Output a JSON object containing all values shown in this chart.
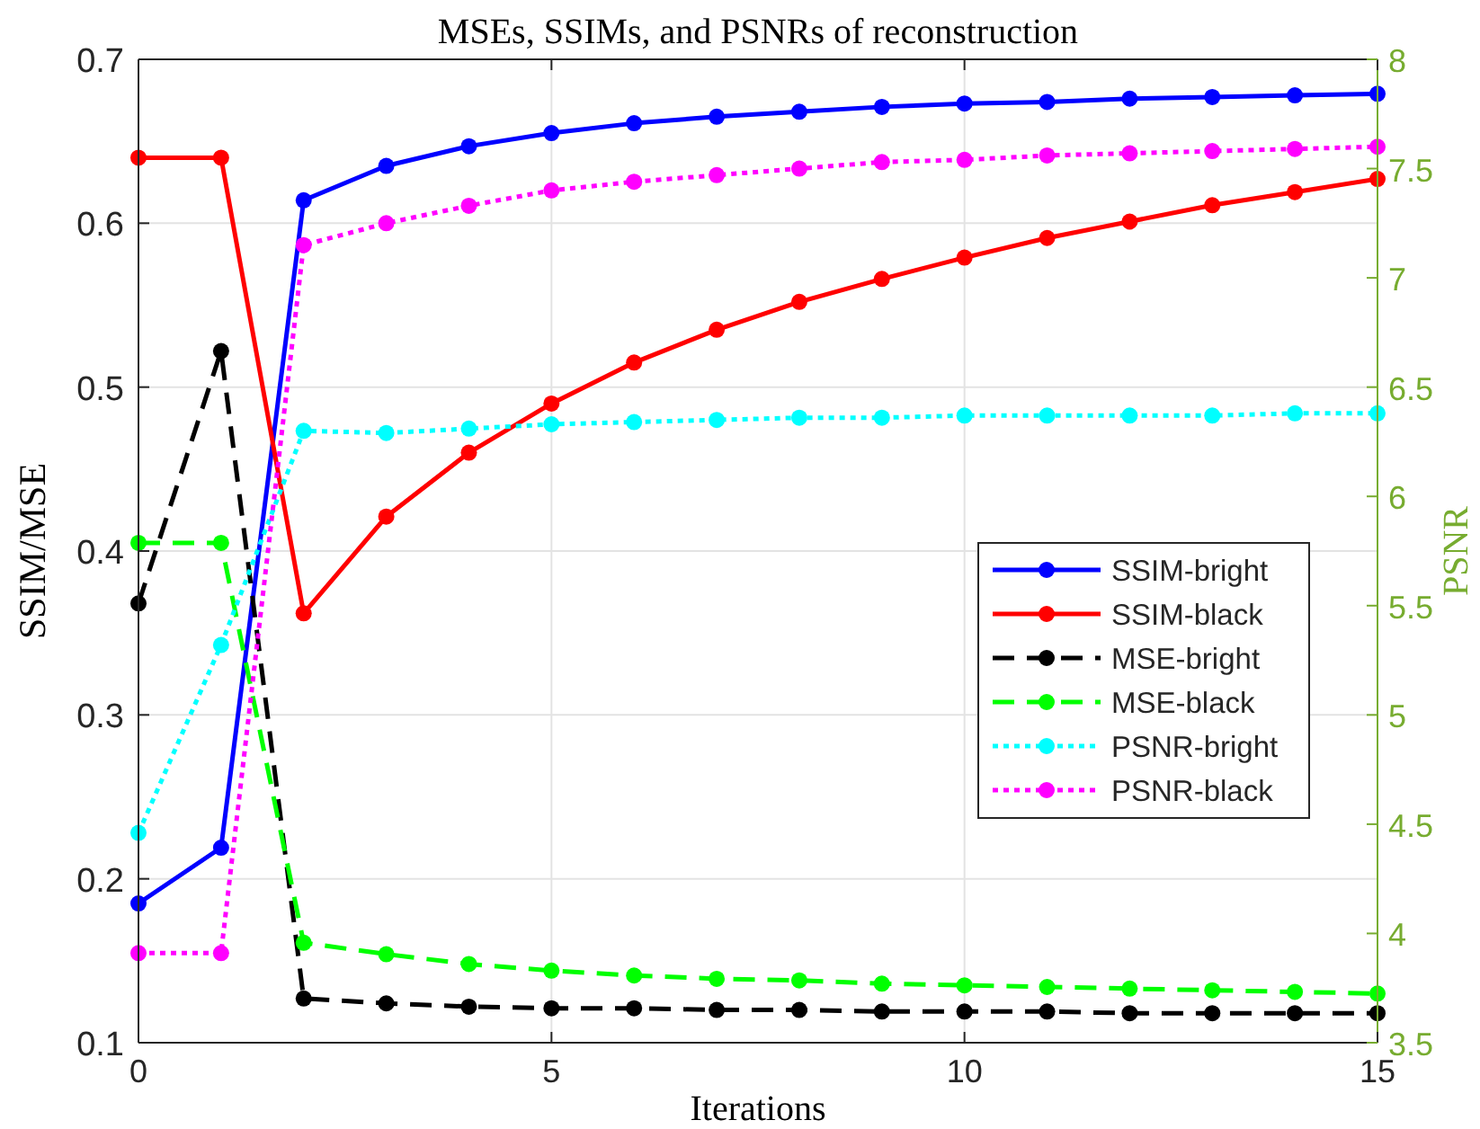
{
  "chart_data": {
    "type": "line",
    "title": "MSEs, SSIMs, and PSNRs of reconstruction",
    "xlabel": "Iterations",
    "ylabel": "SSIM/MSE",
    "y2label": "PSNR",
    "x": [
      0,
      1,
      2,
      3,
      4,
      5,
      6,
      7,
      8,
      9,
      10,
      11,
      12,
      13,
      14,
      15
    ],
    "xlim": [
      0,
      15
    ],
    "xticks": [
      0,
      5,
      10,
      15
    ],
    "ylim": [
      0.1,
      0.7
    ],
    "yticks": [
      0.1,
      0.2,
      0.3,
      0.4,
      0.5,
      0.6,
      0.7
    ],
    "y2lim": [
      3.5,
      8
    ],
    "y2ticks": [
      3.5,
      4,
      4.5,
      5,
      5.5,
      6,
      6.5,
      7,
      7.5,
      8
    ],
    "grid": true,
    "legend": "right",
    "marker": "circle",
    "series": [
      {
        "name": "SSIM-bright",
        "color": "#0000ff",
        "line_style": "solid",
        "values": [
          0.185,
          0.219,
          0.614,
          0.635,
          0.647,
          0.655,
          0.661,
          0.665,
          0.668,
          0.671,
          0.673,
          0.674,
          0.676,
          0.677,
          0.678,
          0.679
        ]
      },
      {
        "name": "SSIM-black",
        "color": "#ff0000",
        "line_style": "solid",
        "values": [
          0.64,
          0.64,
          0.362,
          0.421,
          0.46,
          0.49,
          0.515,
          0.535,
          0.552,
          0.566,
          0.579,
          0.591,
          0.601,
          0.611,
          0.619,
          0.627
        ]
      },
      {
        "name": "MSE-bright",
        "color": "#000000",
        "line_style": "dashed",
        "values": [
          0.368,
          0.522,
          0.127,
          0.124,
          0.122,
          0.121,
          0.121,
          0.12,
          0.12,
          0.119,
          0.119,
          0.119,
          0.118,
          0.118,
          0.118,
          0.118
        ]
      },
      {
        "name": "MSE-black",
        "color": "#00ff00",
        "line_style": "dashed",
        "values": [
          0.405,
          0.405,
          0.161,
          0.154,
          0.148,
          0.144,
          0.141,
          0.139,
          0.138,
          0.136,
          0.135,
          0.134,
          0.133,
          0.132,
          0.131,
          0.13
        ]
      },
      {
        "name": "PSNR-bright",
        "color": "#00ffff",
        "line_style": "dotted",
        "axis": "y2",
        "values": [
          4.46,
          5.32,
          6.3,
          6.29,
          6.31,
          6.33,
          6.34,
          6.35,
          6.36,
          6.36,
          6.37,
          6.37,
          6.37,
          6.37,
          6.38,
          6.38
        ]
      },
      {
        "name": "PSNR-black",
        "color": "#ff00ff",
        "line_style": "dotted",
        "axis": "y2",
        "values": [
          3.91,
          3.91,
          7.15,
          7.25,
          7.33,
          7.4,
          7.44,
          7.47,
          7.5,
          7.53,
          7.54,
          7.56,
          7.57,
          7.58,
          7.59,
          7.6
        ]
      }
    ]
  }
}
